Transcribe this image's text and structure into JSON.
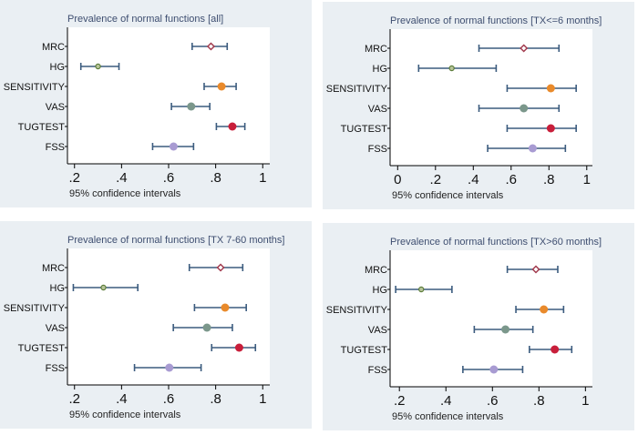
{
  "chart_data": [
    {
      "type": "scatter",
      "title": "Prevalence of normal functions [all]",
      "xlabel": "95% confidence intervals",
      "xlim": [
        0.17,
        1.03
      ],
      "xticks": [
        0.2,
        0.4,
        0.6,
        0.8,
        1
      ],
      "xtick_labels": [
        ".2",
        ".4",
        ".6",
        ".8",
        "1"
      ],
      "categories": [
        "MRC",
        "HG",
        "SENSITIVITY",
        "VAS",
        "TUGTEST",
        "FSS"
      ],
      "estimates": [
        0.78,
        0.3,
        0.825,
        0.696,
        0.871,
        0.621
      ],
      "ci_low": [
        0.7,
        0.227,
        0.751,
        0.612,
        0.803,
        0.532
      ],
      "ci_high": [
        0.849,
        0.389,
        0.887,
        0.775,
        0.924,
        0.706
      ]
    },
    {
      "type": "scatter",
      "title": "Prevalence of normal functions [TX<=6 months]",
      "xlabel": "95% confidence intervals",
      "xlim": [
        -0.04,
        1.03
      ],
      "xticks": [
        0,
        0.2,
        0.4,
        0.6,
        0.8,
        1
      ],
      "xtick_labels": [
        "0",
        ".2",
        ".4",
        ".6",
        ".8",
        "1"
      ],
      "categories": [
        "MRC",
        "HG",
        "SENSITIVITY",
        "VAS",
        "TUGTEST",
        "FSS"
      ],
      "estimates": [
        0.667,
        0.286,
        0.81,
        0.667,
        0.81,
        0.714
      ],
      "ci_low": [
        0.43,
        0.111,
        0.579,
        0.43,
        0.579,
        0.476
      ],
      "ci_high": [
        0.853,
        0.521,
        0.944,
        0.853,
        0.944,
        0.887
      ]
    },
    {
      "type": "scatter",
      "title": "Prevalence of normal functions [TX 7-60 months]",
      "xlabel": "95% confidence intervals",
      "xlim": [
        0.17,
        1.03
      ],
      "xticks": [
        0.2,
        0.4,
        0.6,
        0.8,
        1
      ],
      "xtick_labels": [
        ".2",
        ".4",
        ".6",
        ".8",
        "1"
      ],
      "categories": [
        "MRC",
        "HG",
        "SENSITIVITY",
        "VAS",
        "TUGTEST",
        "FSS"
      ],
      "estimates": [
        0.821,
        0.323,
        0.84,
        0.763,
        0.9,
        0.603
      ],
      "ci_low": [
        0.688,
        0.195,
        0.71,
        0.62,
        0.783,
        0.455
      ],
      "ci_high": [
        0.915,
        0.469,
        0.93,
        0.871,
        0.969,
        0.738
      ]
    },
    {
      "type": "scatter",
      "title": "Prevalence of normal functions [TX>60 months]",
      "xlabel": "95% confidence intervals",
      "xlim": [
        0.16,
        1.03
      ],
      "xticks": [
        0.2,
        0.4,
        0.6,
        0.8,
        1
      ],
      "xtick_labels": [
        ".2",
        ".4",
        ".6",
        ".8",
        "1"
      ],
      "categories": [
        "MRC",
        "HG",
        "SENSITIVITY",
        "VAS",
        "TUGTEST",
        "FSS"
      ],
      "estimates": [
        0.787,
        0.294,
        0.821,
        0.656,
        0.868,
        0.606
      ],
      "ci_low": [
        0.664,
        0.184,
        0.701,
        0.522,
        0.759,
        0.473
      ],
      "ci_high": [
        0.881,
        0.426,
        0.906,
        0.774,
        0.941,
        0.73
      ]
    }
  ],
  "colors": {
    "ci_line": "#3b5b7e",
    "MRC": "#a23b4e",
    "HG": "#5d7d3c",
    "SENSITIVITY": "#e98a2b",
    "VAS": "#7b978b",
    "TUGTEST": "#c81e3a",
    "FSS": "#a89bd2",
    "title": "#3e4e70",
    "panel_bg": "#eaeff3"
  }
}
